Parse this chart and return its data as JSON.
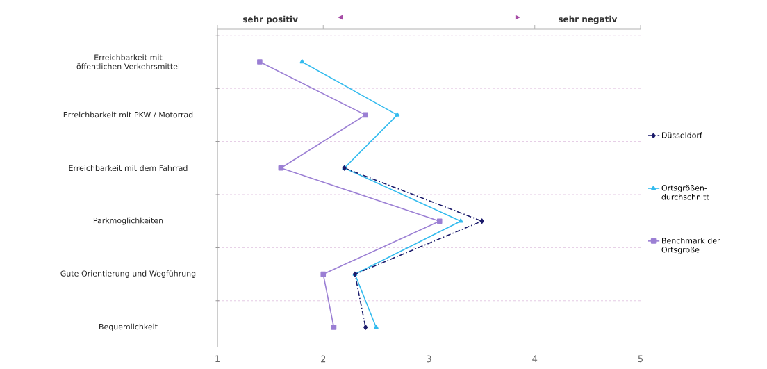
{
  "chart_data": {
    "type": "line",
    "orientation": "horizontal",
    "categories": [
      "Erreichbarkeit mit öffentlichen Verkehrsmittel",
      "Erreichbarkeit mit PKW / Motorrad",
      "Erreichbarkeit mit dem Fahrrad",
      "Parkmöglichkeiten",
      "Gute Orientierung und Wegführung",
      "Bequemlichkeit"
    ],
    "series": [
      {
        "name": "Düsseldorf",
        "color": "#1b1b6b",
        "marker": "diamond",
        "line_style": "dashdot",
        "values": [
          null,
          null,
          2.2,
          3.5,
          2.3,
          2.4
        ]
      },
      {
        "name": "Ortsgrößen-durchschnitt",
        "color": "#33bbee",
        "marker": "triangle",
        "line_style": "solid",
        "values": [
          1.8,
          2.7,
          2.2,
          3.3,
          2.3,
          2.5
        ]
      },
      {
        "name": "Benchmark der Ortsgröße",
        "color": "#9b7fd4",
        "marker": "square",
        "line_style": "solid",
        "values": [
          1.4,
          2.4,
          1.6,
          3.1,
          2.0,
          2.1
        ]
      }
    ],
    "xlim": [
      1,
      5
    ],
    "xticks": [
      1,
      2,
      3,
      4,
      5
    ],
    "grid": "y",
    "legend": "right",
    "annotations": [
      "sehr positiv",
      "sehr negativ"
    ]
  }
}
